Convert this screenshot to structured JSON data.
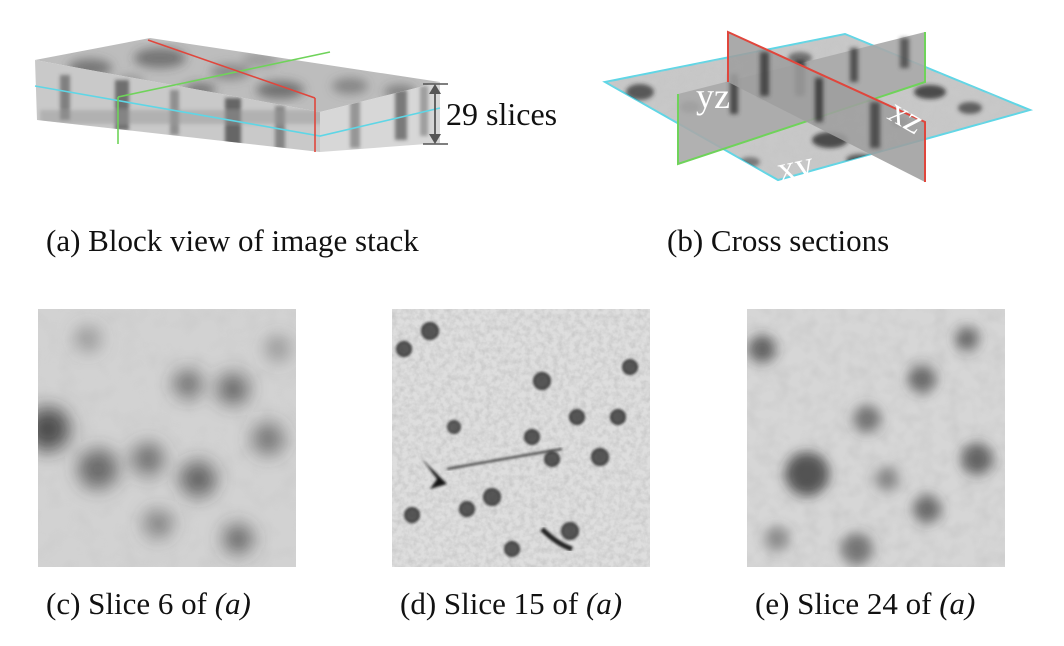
{
  "figure": {
    "block_view": {
      "slice_count_label": "29 slices",
      "caption": "(a) Block view of image stack"
    },
    "cross_sections": {
      "plane_labels": {
        "yz": "yz",
        "xz": "xz",
        "xy": "xy"
      },
      "caption": "(b) Cross sections"
    },
    "slices": [
      {
        "caption_prefix": "(c) Slice 6 of ",
        "caption_ref": "(a)",
        "slice_number": 6,
        "sharpness": "blurred"
      },
      {
        "caption_prefix": "(d) Slice 15 of ",
        "caption_ref": "(a)",
        "slice_number": 15,
        "sharpness": "in-focus"
      },
      {
        "caption_prefix": "(e) Slice 24 of ",
        "caption_ref": "(a)",
        "slice_number": 24,
        "sharpness": "blurred"
      }
    ],
    "colors": {
      "xy_plane": "#5ed6e6",
      "yz_plane": "#6fd35a",
      "xz_plane": "#e0463c",
      "dimension_arrow": "#555555"
    }
  }
}
